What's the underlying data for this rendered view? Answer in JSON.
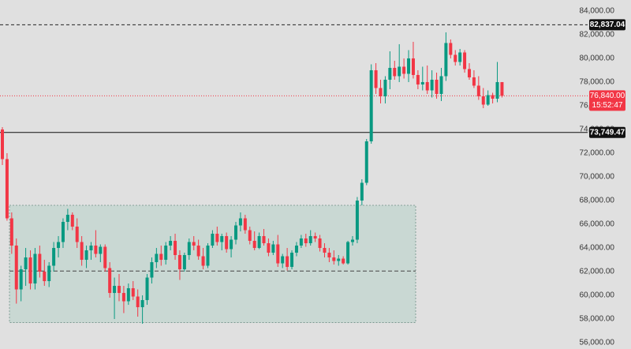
{
  "chart_data": {
    "type": "candlestick",
    "up_color": "#089981",
    "down_color": "#f23645",
    "ylim": [
      55470,
      84930
    ],
    "yticks": [
      {
        "value": 56000,
        "label": "56,000.00"
      },
      {
        "value": 58000,
        "label": "58,000.00"
      },
      {
        "value": 60000,
        "label": "60,000.00"
      },
      {
        "value": 62000,
        "label": "62,000.00"
      },
      {
        "value": 64000,
        "label": "64,000.00"
      },
      {
        "value": 66000,
        "label": "66,000.00"
      },
      {
        "value": 68000,
        "label": "68,000.00"
      },
      {
        "value": 70000,
        "label": "70,000.00"
      },
      {
        "value": 72000,
        "label": "72,000.00"
      },
      {
        "value": 74000,
        "label": "74,000.00"
      },
      {
        "value": 76000,
        "label": "76,000.00"
      },
      {
        "value": 78000,
        "label": "78,000.00"
      },
      {
        "value": 80000,
        "label": "80,000.00"
      },
      {
        "value": 82000,
        "label": "82,000.00"
      },
      {
        "value": 84000,
        "label": "84,000.00"
      }
    ],
    "open": [
      74000,
      71500,
      66500,
      64200,
      60500,
      62200,
      63200,
      61000,
      63500,
      62000,
      61200,
      62500,
      64000,
      64500,
      66200,
      66800,
      65800,
      64500,
      63000,
      63800,
      64200,
      63500,
      64100,
      62300,
      60200,
      60800,
      60200,
      59500,
      60600,
      59900,
      59000,
      59600,
      61500,
      62800,
      63500,
      63000,
      64200,
      64600,
      63400,
      62200,
      63400,
      64500,
      64200,
      63300,
      62500,
      64200,
      65200,
      64500,
      65000,
      63900,
      64700,
      65900,
      66500,
      65500,
      64600,
      64000,
      65000,
      64400,
      63600,
      64300,
      62700,
      63300,
      62400,
      63600,
      64200,
      64800,
      64400,
      65000,
      64800,
      64000,
      63600,
      63200,
      62900,
      63100,
      62700,
      64500,
      64700,
      68000,
      69500,
      73000,
      79000,
      77500,
      76800,
      78200,
      79200,
      78500,
      79300,
      78700,
      80000,
      78600,
      77800,
      78000,
      77300,
      78200,
      77000,
      78500,
      81300,
      80300,
      79700,
      80500,
      79100,
      78400,
      77700,
      76800,
      76100,
      76900,
      76600,
      78000
    ],
    "high": [
      74200,
      72000,
      67000,
      64800,
      62500,
      64000,
      63800,
      64000,
      64200,
      63000,
      62800,
      64500,
      65000,
      66500,
      67300,
      67000,
      66500,
      65000,
      64200,
      64500,
      65500,
      64300,
      64300,
      62800,
      61500,
      61800,
      60800,
      61000,
      61200,
      60500,
      60000,
      61800,
      63200,
      64000,
      64200,
      64500,
      65000,
      65200,
      63800,
      63600,
      64800,
      65000,
      64700,
      64000,
      64400,
      65500,
      65800,
      65200,
      65300,
      65000,
      66200,
      67000,
      66800,
      65800,
      65400,
      65300,
      65600,
      64800,
      64600,
      65100,
      63500,
      64000,
      63800,
      64500,
      65100,
      65200,
      65500,
      65300,
      65100,
      64400,
      64000,
      63800,
      63400,
      63300,
      64600,
      65000,
      68300,
      69800,
      73200,
      79500,
      79600,
      78200,
      78500,
      80600,
      79800,
      81200,
      80000,
      80700,
      81400,
      79000,
      79300,
      79400,
      79000,
      78800,
      79200,
      82200,
      81600,
      80700,
      80800,
      80700,
      79600,
      79000,
      78500,
      77500,
      77300,
      77100,
      79700,
      78000
    ],
    "low": [
      71000,
      66300,
      63500,
      59300,
      59500,
      60800,
      60500,
      60500,
      61500,
      60800,
      60700,
      62000,
      63200,
      64000,
      65500,
      65500,
      64000,
      62500,
      62300,
      63000,
      63200,
      62800,
      62000,
      59800,
      58000,
      59500,
      58500,
      59200,
      59600,
      58200,
      57600,
      59200,
      61000,
      62300,
      62500,
      62600,
      63800,
      63000,
      61300,
      62000,
      63000,
      63800,
      63000,
      62200,
      62300,
      64000,
      64200,
      63800,
      63600,
      63200,
      64300,
      65400,
      65200,
      64300,
      63800,
      63900,
      64200,
      63300,
      63400,
      62400,
      62300,
      62100,
      62200,
      63300,
      64000,
      64100,
      64200,
      64500,
      63700,
      63200,
      62800,
      62600,
      62500,
      62600,
      62600,
      64200,
      64400,
      67600,
      69300,
      72800,
      77000,
      76200,
      76200,
      77400,
      78200,
      78000,
      78300,
      78000,
      78300,
      77400,
      77300,
      77000,
      76700,
      76600,
      76400,
      78100,
      80000,
      79400,
      79400,
      78800,
      78200,
      77500,
      76500,
      75800,
      76000,
      76200,
      76300,
      76700
    ],
    "close": [
      71500,
      66500,
      64200,
      60500,
      62200,
      63200,
      61000,
      63500,
      62000,
      61200,
      62500,
      64000,
      64500,
      66200,
      66800,
      65800,
      64500,
      63000,
      63800,
      64200,
      63500,
      64100,
      62300,
      60200,
      60800,
      60200,
      59500,
      60600,
      59900,
      59000,
      59600,
      61500,
      62800,
      63500,
      63000,
      64200,
      64600,
      63400,
      62200,
      63400,
      64500,
      64200,
      63300,
      62500,
      64200,
      65200,
      64500,
      65000,
      63900,
      64700,
      65900,
      66500,
      65500,
      64600,
      64000,
      65000,
      64400,
      63600,
      64300,
      62700,
      63300,
      62400,
      63600,
      64200,
      64800,
      64400,
      65000,
      64800,
      64000,
      63600,
      63200,
      62900,
      63100,
      62700,
      64500,
      64700,
      68000,
      69500,
      73000,
      79000,
      77500,
      76800,
      78200,
      79200,
      78500,
      79300,
      78700,
      80000,
      78600,
      77800,
      78000,
      77300,
      78200,
      77000,
      78500,
      81300,
      80300,
      79700,
      80500,
      79100,
      78400,
      77700,
      76800,
      76100,
      76900,
      76600,
      78000,
      76840
    ],
    "zone": {
      "top": 67600,
      "bottom": 57700,
      "mid": 62050
    },
    "high_line": {
      "value": 82837.04,
      "label": "82,837.04"
    },
    "level_line": {
      "value": 73749.47,
      "label": "73,749.47"
    },
    "last_price": {
      "value": 76840,
      "label": "76,840.00",
      "countdown": "15:52:47"
    }
  }
}
